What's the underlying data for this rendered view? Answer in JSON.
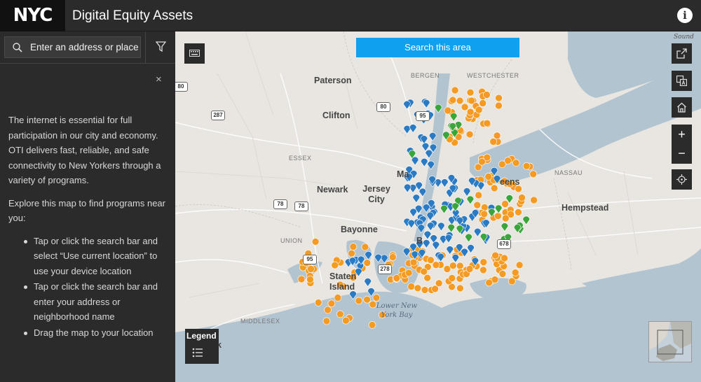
{
  "header": {
    "logo_text": "NYC",
    "title": "Digital Equity Assets",
    "info_icon_text": "i"
  },
  "sidebar": {
    "search_placeholder": "Enter an address or place",
    "close_text": "×",
    "intro": "The internet is essential for full participation in our city and economy. OTI delivers fast, reliable, and safe connectivity to New Yorkers through a variety of programs.",
    "explore": "Explore this map to find programs near you:",
    "bullets": [
      "Tap or click the search bar and select “Use current location” to use your device location",
      "Tap or click the search bar and enter your address or neighborhood name",
      "Drag the map to your location"
    ]
  },
  "map": {
    "search_area_label": "Search this area",
    "sound_label": "Sound",
    "legend_label": "Legend",
    "zoom_in": "+",
    "zoom_out": "−",
    "labels": {
      "paterson": "Paterson",
      "clifton": "Clifton",
      "newark": "Newark",
      "jersey_city": "Jersey City",
      "bayonne": "Bayonne",
      "staten_island": "Staten Island",
      "manhattan_partial": "Ma",
      "queens_partial": "eens",
      "brooklyn_partial": "B",
      "hempstead": "Hempstead",
      "bergen": "BERGEN",
      "westchester": "WESTCHESTER",
      "essex": "ESSEX",
      "union": "UNION",
      "nassau": "NASSAU",
      "middlesex": "MIDDLESEX",
      "bay": "Lower New York Bay",
      "ck_partial": "ck"
    },
    "shields": [
      "80",
      "287",
      "80",
      "95",
      "78",
      "78",
      "95",
      "278",
      "678"
    ],
    "colors": {
      "orange": "#f59a23",
      "blue": "#2b7bc4",
      "green": "#3aa53a",
      "water": "#b3c4d1",
      "land": "#e9e6e1",
      "button_blue": "#0fa0ef"
    }
  }
}
